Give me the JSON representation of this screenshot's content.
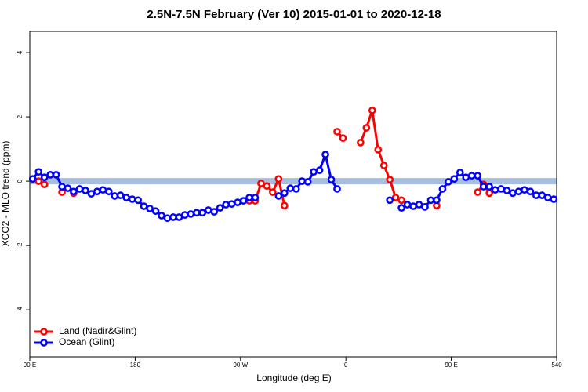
{
  "chart_data": {
    "type": "line",
    "title": "2.5N-7.5N February (Ver 10)   2015-01-01 to 2020-12-18",
    "x_label": "Longitude (deg E)",
    "y_label": "XCO2 - MLO trend (ppm)",
    "x": [
      92.5,
      97.5,
      102.5,
      107.5,
      112.5,
      117.5,
      122.5,
      127.5,
      132.5,
      137.5,
      142.5,
      147.5,
      152.5,
      157.5,
      162.5,
      167.5,
      172.5,
      177.5,
      182.5,
      187.5,
      192.5,
      197.5,
      202.5,
      207.5,
      212.5,
      217.5,
      222.5,
      227.5,
      232.5,
      237.5,
      242.5,
      247.5,
      252.5,
      257.5,
      262.5,
      267.5,
      272.5,
      277.5,
      282.5,
      287.5,
      292.5,
      297.5,
      302.5,
      307.5,
      312.5,
      317.5,
      322.5,
      327.5,
      332.5,
      337.5,
      342.5,
      347.5,
      352.5,
      357.5,
      362.5,
      367.5,
      372.5,
      377.5,
      382.5,
      387.5,
      392.5,
      397.5,
      402.5,
      407.5,
      412.5,
      417.5,
      422.5,
      427.5,
      432.5,
      437.5,
      442.5,
      447.5,
      452.5,
      457.5,
      462.5,
      467.5,
      472.5,
      477.5,
      482.5,
      487.5,
      492.5,
      497.5,
      502.5,
      507.5,
      512.5,
      517.5,
      522.5,
      527.5,
      532.5,
      537.5
    ],
    "series": [
      {
        "name": "Land (Nadir&Glint)",
        "color": "#ff0000",
        "values": [
          null,
          0,
          -0.1,
          null,
          null,
          -0.34,
          null,
          -0.37,
          null,
          null,
          null,
          null,
          null,
          null,
          null,
          null,
          null,
          null,
          null,
          null,
          null,
          null,
          null,
          null,
          null,
          null,
          null,
          null,
          null,
          null,
          null,
          null,
          null,
          null,
          null,
          null,
          null,
          -0.61,
          -0.61,
          -0.07,
          -0.15,
          -0.34,
          0.07,
          -0.76,
          null,
          null,
          null,
          null,
          null,
          null,
          null,
          null,
          1.54,
          1.34,
          null,
          null,
          1.2,
          1.66,
          2.2,
          0.98,
          0.49,
          0.05,
          -0.51,
          -0.59,
          null,
          null,
          null,
          null,
          null,
          -0.76,
          null,
          null,
          null,
          null,
          null,
          null,
          -0.34,
          -0.1,
          -0.37,
          null,
          null,
          null,
          null,
          null,
          null,
          null,
          null,
          null,
          null,
          null
        ]
      },
      {
        "name": "Ocean (Glint)",
        "color": "#0000ff",
        "values": [
          0.07,
          0.29,
          0.12,
          0.2,
          0.2,
          -0.17,
          -0.22,
          -0.32,
          -0.24,
          -0.29,
          -0.39,
          -0.32,
          -0.27,
          -0.32,
          -0.46,
          -0.44,
          -0.51,
          -0.56,
          -0.59,
          -0.78,
          -0.85,
          -0.93,
          -1.07,
          -1.15,
          -1.12,
          -1.12,
          -1.05,
          -1.02,
          -0.98,
          -0.98,
          -0.9,
          -0.95,
          -0.83,
          -0.73,
          -0.71,
          -0.66,
          -0.61,
          -0.51,
          -0.51,
          null,
          null,
          null,
          -0.46,
          -0.37,
          -0.22,
          -0.24,
          0,
          -0.02,
          0.29,
          0.34,
          0.83,
          0.05,
          -0.24,
          null,
          null,
          null,
          null,
          null,
          null,
          null,
          null,
          -0.59,
          null,
          -0.83,
          -0.73,
          -0.78,
          -0.73,
          -0.8,
          -0.59,
          -0.59,
          -0.24,
          -0.02,
          0.07,
          0.27,
          0.12,
          0.17,
          0.17,
          -0.17,
          -0.17,
          -0.27,
          -0.24,
          -0.29,
          -0.37,
          -0.32,
          -0.27,
          -0.32,
          -0.44,
          -0.44,
          -0.51,
          -0.56
        ]
      }
    ],
    "xlim": [
      90,
      540
    ],
    "xticks": [
      {
        "value": 90,
        "label": "90 E"
      },
      180,
      {
        "value": 270,
        "label": "90 W"
      },
      {
        "value": 360,
        "label": "0"
      },
      {
        "value": 450,
        "label": "90 E"
      },
      540
    ],
    "ylim": [
      -5.46,
      4.66
    ],
    "yticks": [
      -4,
      -2,
      0,
      2,
      4
    ],
    "legend": "bottom-left"
  }
}
